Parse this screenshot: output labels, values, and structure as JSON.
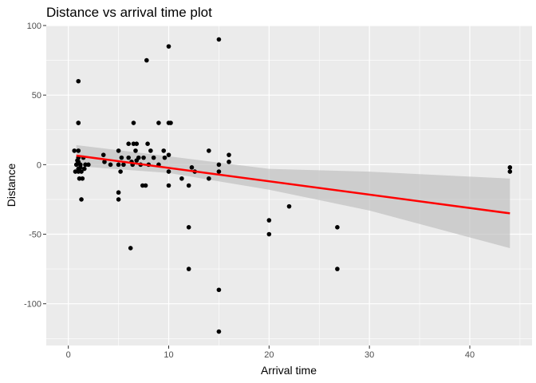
{
  "chart_data": {
    "type": "scatter",
    "title": "Distance vs arrival time plot",
    "xlabel": "Arrival time",
    "ylabel": "Distance",
    "xlim": [
      -2.2,
      46.2
    ],
    "ylim": [
      -130,
      100
    ],
    "xticks": [
      0,
      10,
      20,
      30,
      40
    ],
    "yticks": [
      -100,
      -50,
      0,
      50,
      100
    ],
    "grid": true,
    "colors": {
      "panel": "#ebebeb",
      "grid": "#ffffff",
      "points": "#000000",
      "fit_line": "#ff0000",
      "ribbon": "#bdbdbd"
    },
    "points": [
      {
        "x": 0.6,
        "y": 10
      },
      {
        "x": 0.7,
        "y": -5
      },
      {
        "x": 0.8,
        "y": 0
      },
      {
        "x": 0.9,
        "y": 3
      },
      {
        "x": 1.0,
        "y": 60
      },
      {
        "x": 1.0,
        "y": 30
      },
      {
        "x": 1.0,
        "y": 30
      },
      {
        "x": 1.0,
        "y": 10
      },
      {
        "x": 1.0,
        "y": 5
      },
      {
        "x": 1.0,
        "y": 2
      },
      {
        "x": 1.0,
        "y": -3
      },
      {
        "x": 1.0,
        "y": -5
      },
      {
        "x": 1.1,
        "y": -10
      },
      {
        "x": 1.2,
        "y": 0
      },
      {
        "x": 1.2,
        "y": -2
      },
      {
        "x": 1.3,
        "y": -5
      },
      {
        "x": 1.3,
        "y": -25
      },
      {
        "x": 1.4,
        "y": -10
      },
      {
        "x": 1.5,
        "y": 5
      },
      {
        "x": 1.6,
        "y": -3
      },
      {
        "x": 1.7,
        "y": 0
      },
      {
        "x": 2.0,
        "y": 0
      },
      {
        "x": 3.5,
        "y": 7
      },
      {
        "x": 3.6,
        "y": 2
      },
      {
        "x": 4.2,
        "y": 0
      },
      {
        "x": 5.0,
        "y": 10
      },
      {
        "x": 5.0,
        "y": 0
      },
      {
        "x": 5.0,
        "y": -20
      },
      {
        "x": 5.0,
        "y": -25
      },
      {
        "x": 5.2,
        "y": -5
      },
      {
        "x": 5.3,
        "y": 5
      },
      {
        "x": 5.5,
        "y": 0
      },
      {
        "x": 6.0,
        "y": 15
      },
      {
        "x": 6.0,
        "y": 5
      },
      {
        "x": 6.2,
        "y": -60
      },
      {
        "x": 6.3,
        "y": 2
      },
      {
        "x": 6.4,
        "y": 0
      },
      {
        "x": 6.5,
        "y": 30
      },
      {
        "x": 6.5,
        "y": 15
      },
      {
        "x": 6.7,
        "y": 10
      },
      {
        "x": 6.8,
        "y": 15
      },
      {
        "x": 6.8,
        "y": 3
      },
      {
        "x": 7.0,
        "y": 5
      },
      {
        "x": 7.2,
        "y": 0
      },
      {
        "x": 7.4,
        "y": -15
      },
      {
        "x": 7.5,
        "y": 5
      },
      {
        "x": 7.7,
        "y": -15
      },
      {
        "x": 7.8,
        "y": 75
      },
      {
        "x": 7.9,
        "y": 15
      },
      {
        "x": 8.0,
        "y": 0
      },
      {
        "x": 8.2,
        "y": 10
      },
      {
        "x": 8.5,
        "y": 5
      },
      {
        "x": 9.0,
        "y": 30
      },
      {
        "x": 9.0,
        "y": 0
      },
      {
        "x": 9.5,
        "y": 10
      },
      {
        "x": 9.6,
        "y": 5
      },
      {
        "x": 10.0,
        "y": 85
      },
      {
        "x": 10.0,
        "y": 30
      },
      {
        "x": 10.0,
        "y": 7
      },
      {
        "x": 10.0,
        "y": -5
      },
      {
        "x": 10.0,
        "y": -15
      },
      {
        "x": 10.2,
        "y": 30
      },
      {
        "x": 11.3,
        "y": -10
      },
      {
        "x": 12.0,
        "y": -15
      },
      {
        "x": 12.0,
        "y": -45
      },
      {
        "x": 12.0,
        "y": -75
      },
      {
        "x": 12.3,
        "y": -2
      },
      {
        "x": 12.6,
        "y": -5
      },
      {
        "x": 14.0,
        "y": 10
      },
      {
        "x": 14.0,
        "y": -10
      },
      {
        "x": 15.0,
        "y": 90
      },
      {
        "x": 15.0,
        "y": 0
      },
      {
        "x": 15.0,
        "y": -5
      },
      {
        "x": 15.0,
        "y": -90
      },
      {
        "x": 15.0,
        "y": -120
      },
      {
        "x": 16.0,
        "y": 7
      },
      {
        "x": 16.0,
        "y": 2
      },
      {
        "x": 20.0,
        "y": -40
      },
      {
        "x": 20.0,
        "y": -50
      },
      {
        "x": 22.0,
        "y": -30
      },
      {
        "x": 26.8,
        "y": -45
      },
      {
        "x": 26.8,
        "y": -75
      },
      {
        "x": 44.0,
        "y": -2
      },
      {
        "x": 44.0,
        "y": -5
      }
    ],
    "fit_line": {
      "x": [
        0.8,
        44.0
      ],
      "y": [
        6.5,
        -35
      ]
    },
    "confidence_band": {
      "x": [
        0.8,
        10,
        20,
        30,
        44.0
      ],
      "lower": [
        -1,
        -6,
        -18,
        -33,
        -60
      ],
      "upper": [
        14,
        6,
        -3,
        -5,
        -10
      ]
    }
  }
}
